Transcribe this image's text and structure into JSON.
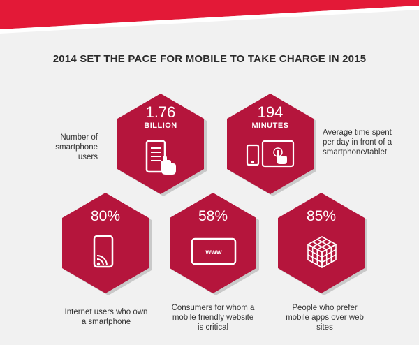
{
  "title": "2014 SET THE PACE FOR MOBILE TO TAKE CHARGE IN 2015",
  "colors": {
    "hex_fill": "#b5153c",
    "hex_shadow": "#c9c9c9",
    "banner_red": "#e31937",
    "banner_white": "#ffffff"
  },
  "stats": [
    {
      "value": "1.76",
      "unit": "BILLION",
      "caption": "Number of\nsmartphone users",
      "icon": "smartphone-touch-icon"
    },
    {
      "value": "194",
      "unit": "MINUTES",
      "caption": "Average time spent\nper day in front of a\nsmartphone/tablet",
      "icon": "phone-tablet-icon"
    },
    {
      "value": "80%",
      "caption": "Internet users who own\na smartphone",
      "icon": "smartphone-wireless-icon"
    },
    {
      "value": "58%",
      "caption": "Consumers for whom a\nmobile friendly website\nis critical",
      "icon": "www-tablet-icon"
    },
    {
      "value": "85%",
      "caption": "People who prefer\nmobile apps over web\nsites",
      "icon": "app-cubes-icon"
    }
  ]
}
